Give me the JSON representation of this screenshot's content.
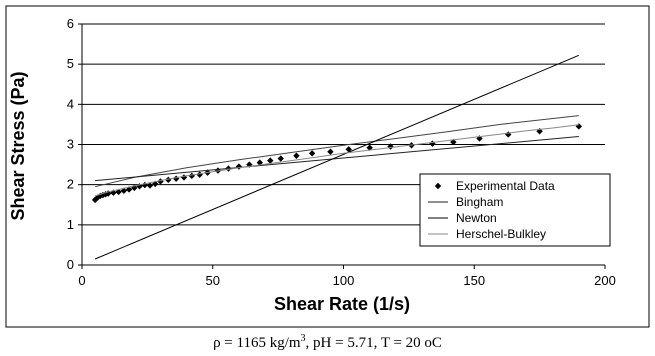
{
  "chart_data": {
    "type": "scatter",
    "xlabel": "Shear Rate (1/s)",
    "ylabel": "Shear Stress (Pa)",
    "xlim": [
      0,
      200
    ],
    "ylim": [
      0,
      6
    ],
    "x_ticks": [
      0,
      50,
      100,
      150,
      200
    ],
    "y_ticks": [
      0,
      1,
      2,
      3,
      4,
      5,
      6
    ],
    "grid": "horizontal",
    "legend_position": "bottom-right",
    "series": [
      {
        "name": "Experimental Data",
        "kind": "markers",
        "marker": "diamond",
        "color": "#000000",
        "x": [
          5,
          6,
          7,
          8,
          9,
          10,
          12,
          14,
          16,
          18,
          20,
          22,
          24,
          26,
          28,
          30,
          33,
          36,
          39,
          42,
          45,
          48,
          52,
          56,
          60,
          64,
          68,
          72,
          76,
          82,
          88,
          95,
          102,
          110,
          118,
          126,
          134,
          142,
          152,
          163,
          175,
          190
        ],
        "y": [
          1.62,
          1.68,
          1.72,
          1.74,
          1.76,
          1.78,
          1.8,
          1.82,
          1.85,
          1.88,
          1.92,
          1.96,
          1.99,
          1.98,
          2.02,
          2.08,
          2.12,
          2.15,
          2.18,
          2.22,
          2.25,
          2.3,
          2.35,
          2.4,
          2.45,
          2.5,
          2.55,
          2.6,
          2.65,
          2.72,
          2.78,
          2.82,
          2.88,
          2.92,
          2.95,
          2.98,
          3.02,
          3.06,
          3.15,
          3.25,
          3.33,
          3.45
        ]
      },
      {
        "name": "Bingham",
        "kind": "line",
        "color": "#222222",
        "x": [
          5,
          190
        ],
        "y": [
          2.1,
          3.2
        ]
      },
      {
        "name": "Newton",
        "kind": "line",
        "color": "#000000",
        "x": [
          5,
          190
        ],
        "y": [
          0.15,
          5.22
        ]
      },
      {
        "name": "Herschel-Bulkley",
        "kind": "line",
        "color": "#888888",
        "x": [
          5,
          10,
          20,
          30,
          40,
          50,
          60,
          70,
          80,
          90,
          100,
          110,
          120,
          130,
          140,
          150,
          160,
          170,
          180,
          190
        ],
        "y": [
          1.72,
          1.82,
          1.97,
          2.1,
          2.22,
          2.32,
          2.42,
          2.51,
          2.6,
          2.69,
          2.78,
          2.86,
          2.94,
          3.02,
          3.1,
          3.18,
          3.26,
          3.34,
          3.41,
          3.49
        ]
      }
    ],
    "extra_curve": {
      "color": "#444444",
      "x": [
        5,
        20,
        40,
        60,
        80,
        100,
        120,
        140,
        160,
        190
      ],
      "y": [
        1.95,
        2.18,
        2.42,
        2.62,
        2.8,
        2.98,
        3.15,
        3.32,
        3.5,
        3.72
      ]
    }
  },
  "caption": {
    "rho": "ρ = 1165 kg/m",
    "sup": "3",
    "rest": ", pH = 5.71, T = 20 oC"
  }
}
